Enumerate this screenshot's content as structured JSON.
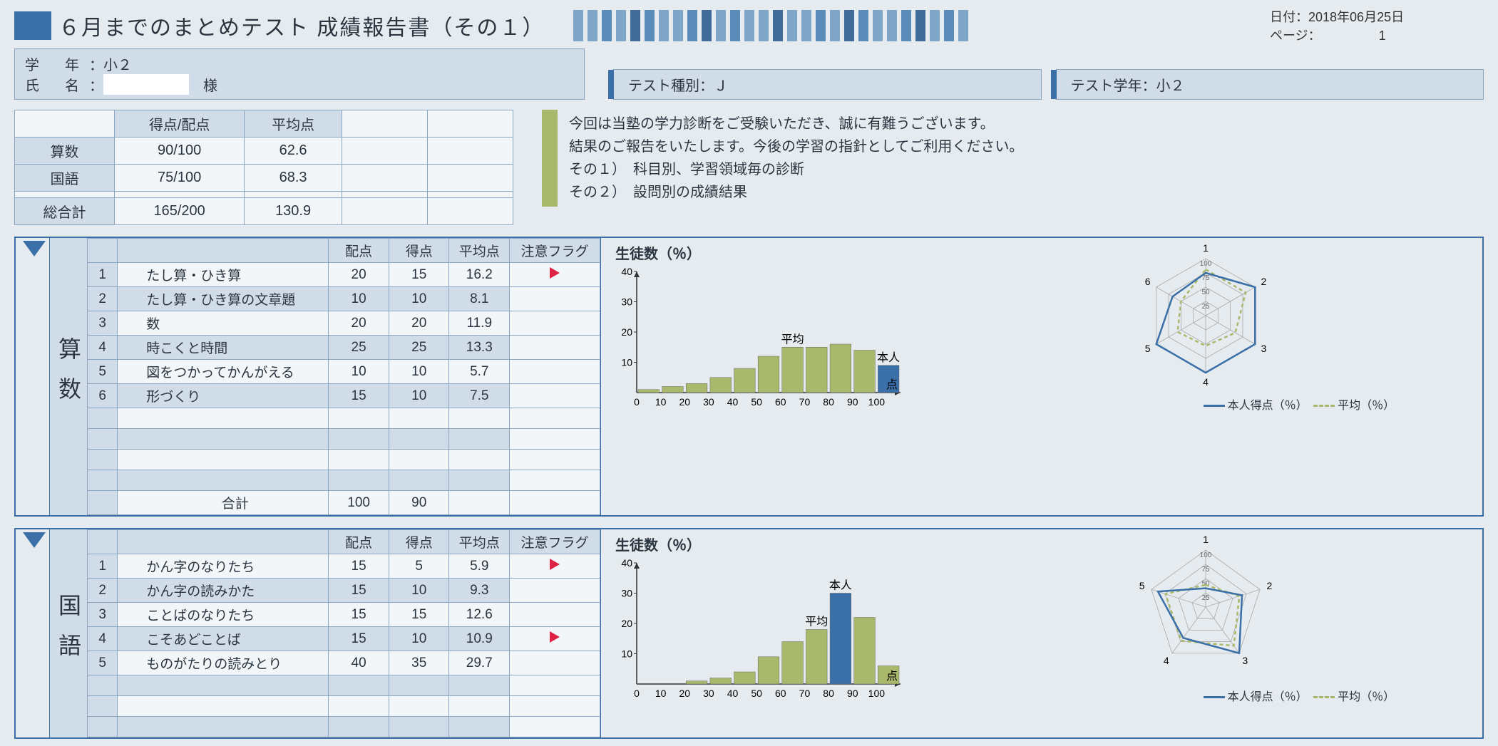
{
  "header": {
    "title": "６月までのまとめテスト 成績報告書（その１）",
    "date_label": "日付：",
    "date": "2018年06月25日",
    "page_label": "ページ：",
    "page": "1",
    "stripe_count": 28
  },
  "student": {
    "grade_label": "学　年",
    "grade": "小２",
    "name_label": "氏　名",
    "name_suffix": "　様",
    "type_label": "テスト種別：",
    "type": "Ｊ",
    "test_grade_label": "テスト学年：",
    "test_grade": "小２"
  },
  "summary": {
    "col_score": "得点/配点",
    "col_avg": "平均点",
    "rows": [
      {
        "label": "算数",
        "score": "90/100",
        "avg": "62.6"
      },
      {
        "label": "国語",
        "score": "75/100",
        "avg": "68.3"
      }
    ],
    "total_label": "総合計",
    "total_score": "165/200",
    "total_avg": "130.9"
  },
  "message": {
    "l1": "今回は当塾の学力診断をご受験いただき、誠に有難うございます。",
    "l2": "結果のご報告をいたします。今後の学習の指針としてご利用ください。",
    "l3": "その１）　科目別、学習領域毎の診断",
    "l4": "その２）　設問別の成績結果"
  },
  "columns": {
    "c1": "配点",
    "c2": "得点",
    "c3": "平均点",
    "c4": "注意フラグ",
    "total": "合計"
  },
  "math": {
    "label": "算数",
    "rows": [
      {
        "n": "1",
        "topic": "たし算・ひき算",
        "max": 20,
        "score": 15,
        "avg": "16.2",
        "flag": true
      },
      {
        "n": "2",
        "topic": "たし算・ひき算の文章題",
        "max": 10,
        "score": 10,
        "avg": "8.1",
        "flag": false
      },
      {
        "n": "3",
        "topic": "数",
        "max": 20,
        "score": 20,
        "avg": "11.9",
        "flag": false
      },
      {
        "n": "4",
        "topic": "時こくと時間",
        "max": 25,
        "score": 25,
        "avg": "13.3",
        "flag": false
      },
      {
        "n": "5",
        "topic": "図をつかってかんがえる",
        "max": 10,
        "score": 10,
        "avg": "5.7",
        "flag": false
      },
      {
        "n": "6",
        "topic": "形づくり",
        "max": 15,
        "score": 10,
        "avg": "7.5",
        "flag": false
      }
    ],
    "filler_rows": 4,
    "total_max": 100,
    "total_score": 90,
    "chart": {
      "type": "bar",
      "title": "生徒数（％）",
      "ylim": 40,
      "yticks": [
        40,
        30,
        20,
        10
      ],
      "xticks": [
        0,
        10,
        20,
        30,
        40,
        50,
        60,
        70,
        80,
        90,
        100
      ],
      "x_label": "点",
      "values": [
        1,
        2,
        3,
        5,
        8,
        12,
        15,
        15,
        16,
        14,
        9
      ],
      "bar_color": "#a9b86b",
      "highlight_index": 10,
      "highlight_color": "#3a6fa8",
      "avg_label": "平均",
      "avg_x": 6,
      "self_label": "本人",
      "self_x": 10
    },
    "radar": {
      "axes": 6,
      "rings": [
        100,
        75,
        50,
        25
      ],
      "self": [
        75,
        100,
        100,
        100,
        100,
        67
      ],
      "avg": [
        81,
        81,
        60,
        53,
        57,
        50
      ],
      "self_color": "#3a6fa8",
      "avg_color": "#a9b86b",
      "legend_self": "本人得点（％）",
      "legend_avg": "平均（％）",
      "axis_labels": [
        "1",
        "2",
        "3",
        "4",
        "5",
        "6"
      ]
    }
  },
  "lang": {
    "label": "国語",
    "rows": [
      {
        "n": "1",
        "topic": "かん字のなりたち",
        "max": 15,
        "score": 5,
        "avg": "5.9",
        "flag": true
      },
      {
        "n": "2",
        "topic": "かん字の読みかた",
        "max": 15,
        "score": 10,
        "avg": "9.3",
        "flag": false
      },
      {
        "n": "3",
        "topic": "ことばのなりたち",
        "max": 15,
        "score": 15,
        "avg": "12.6",
        "flag": false
      },
      {
        "n": "4",
        "topic": "こそあどことば",
        "max": 15,
        "score": 10,
        "avg": "10.9",
        "flag": true
      },
      {
        "n": "5",
        "topic": "ものがたりの読みとり",
        "max": 40,
        "score": 35,
        "avg": "29.7",
        "flag": false
      }
    ],
    "filler_rows": 3,
    "chart": {
      "type": "bar",
      "title": "生徒数（％）",
      "ylim": 40,
      "yticks": [
        40,
        30,
        20,
        10
      ],
      "xticks": [
        0,
        10,
        20,
        30,
        40,
        50,
        60,
        70,
        80,
        90,
        100
      ],
      "x_label": "点",
      "values": [
        0,
        0,
        1,
        2,
        4,
        9,
        14,
        18,
        30,
        22,
        6
      ],
      "bar_color": "#a9b86b",
      "highlight_index": 8,
      "highlight_color": "#3a6fa8",
      "avg_label": "平均",
      "avg_x": 7,
      "self_label": "本人",
      "self_x": 8
    },
    "radar": {
      "axes": 5,
      "rings": [
        100,
        75,
        50,
        25
      ],
      "self": [
        33,
        67,
        100,
        67,
        88
      ],
      "avg": [
        39,
        62,
        84,
        73,
        74
      ],
      "self_color": "#3a6fa8",
      "avg_color": "#a9b86b",
      "legend_self": "本人得点（％）",
      "legend_avg": "平均（％）",
      "axis_labels": [
        "1",
        "2",
        "3",
        "4",
        "5"
      ]
    }
  }
}
